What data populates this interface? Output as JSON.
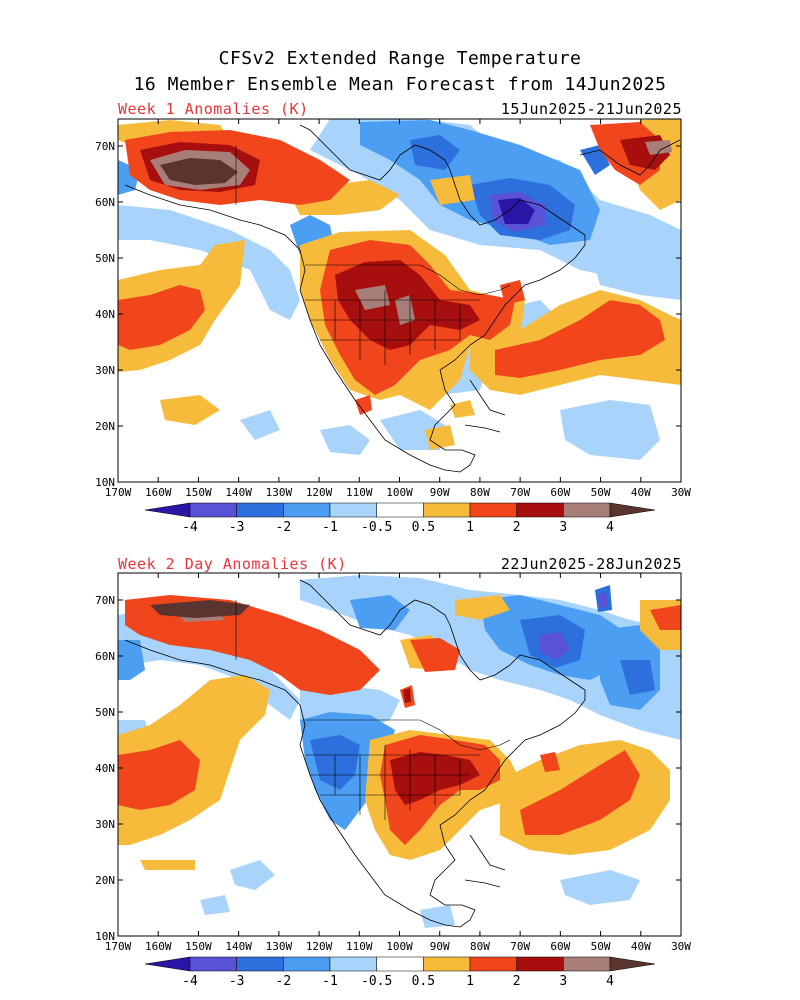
{
  "title_line1": "CFSv2 Extended Range Temperature",
  "title_line2": "16 Member Ensemble Mean Forecast from 14Jun2025",
  "panels": [
    {
      "label": "Week 1 Anomalies (K)",
      "dates": "15Jun2025-21Jun2025"
    },
    {
      "label": "Week 2 Day Anomalies (K)",
      "dates": "22Jun2025-28Jun2025"
    }
  ],
  "lat_labels": [
    "70N",
    "60N",
    "50N",
    "40N",
    "30N",
    "20N",
    "10N"
  ],
  "lon_labels": [
    "170W",
    "160W",
    "150W",
    "140W",
    "130W",
    "120W",
    "110W",
    "100W",
    "90W",
    "80W",
    "70W",
    "60W",
    "50W",
    "40W",
    "30W"
  ],
  "colorbar": {
    "labels": [
      "-4",
      "-3",
      "-2",
      "-1",
      "-0.5",
      "0.5",
      "1",
      "2",
      "3",
      "4"
    ],
    "colors": [
      "#2a16a6",
      "#5a52d6",
      "#2d6fdc",
      "#4b9ef2",
      "#a8d4fb",
      "#ffffff",
      "#f7bb3c",
      "#f1461c",
      "#a70f0f",
      "#a87e78",
      "#5a3530"
    ]
  }
}
